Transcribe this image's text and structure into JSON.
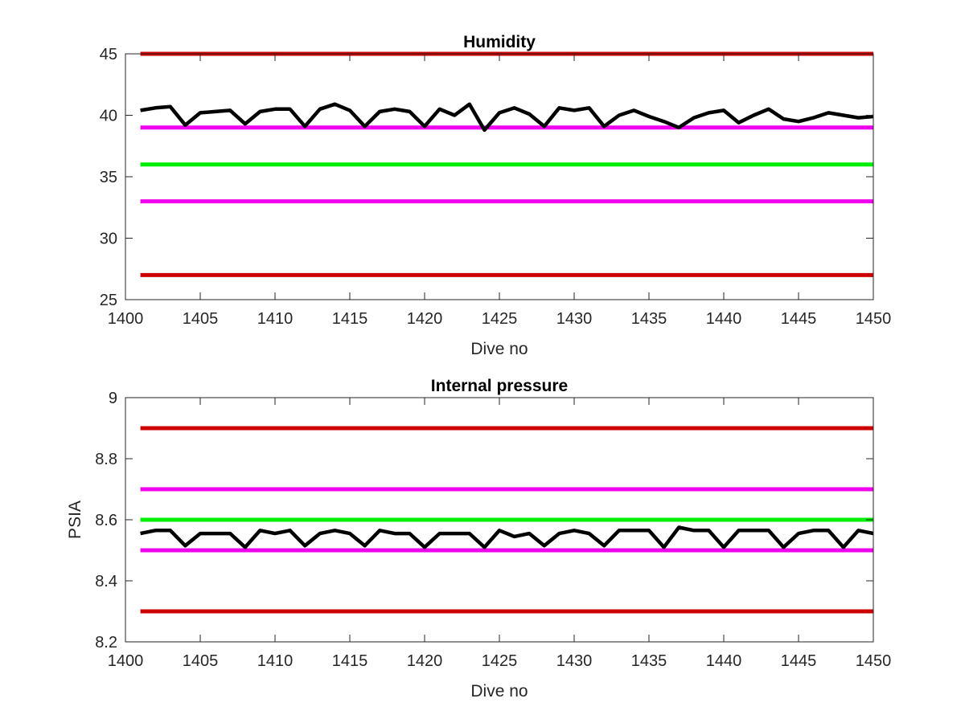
{
  "chart_data": [
    {
      "type": "line",
      "title": "Humidity",
      "xlabel": "Dive no",
      "ylabel": "",
      "xlim": [
        1400,
        1450
      ],
      "ylim": [
        25,
        45
      ],
      "xticks": [
        1400,
        1405,
        1410,
        1415,
        1420,
        1425,
        1430,
        1435,
        1440,
        1445,
        1450
      ],
      "yticks": [
        25,
        30,
        35,
        40,
        45
      ],
      "grid": false,
      "reference_lines": [
        {
          "y": 45,
          "color": "#cc0000"
        },
        {
          "y": 39,
          "color": "#ee00ee"
        },
        {
          "y": 36,
          "color": "#00ee00"
        },
        {
          "y": 33,
          "color": "#ee00ee"
        },
        {
          "y": 27,
          "color": "#cc0000"
        }
      ],
      "series": [
        {
          "color": "#000000",
          "x": [
            1401,
            1402,
            1403,
            1404,
            1405,
            1406,
            1407,
            1408,
            1409,
            1410,
            1411,
            1412,
            1413,
            1414,
            1415,
            1416,
            1417,
            1418,
            1419,
            1420,
            1421,
            1422,
            1423,
            1424,
            1425,
            1426,
            1427,
            1428,
            1429,
            1430,
            1431,
            1432,
            1433,
            1434,
            1435,
            1436,
            1437,
            1438,
            1439,
            1440,
            1441,
            1442,
            1443,
            1444,
            1445,
            1446,
            1447,
            1448,
            1449,
            1450
          ],
          "values": [
            40.4,
            40.6,
            40.7,
            39.2,
            40.2,
            40.3,
            40.4,
            39.3,
            40.3,
            40.5,
            40.5,
            39.1,
            40.5,
            40.9,
            40.4,
            39.1,
            40.3,
            40.5,
            40.3,
            39.1,
            40.5,
            40.0,
            40.9,
            38.8,
            40.2,
            40.6,
            40.1,
            39.1,
            40.6,
            40.4,
            40.6,
            39.1,
            40.0,
            40.4,
            39.9,
            39.5,
            39.0,
            39.8,
            40.2,
            40.4,
            39.4,
            40.0,
            40.5,
            39.7,
            39.5,
            39.8,
            40.2,
            40.0,
            39.8,
            39.9
          ]
        }
      ]
    },
    {
      "type": "line",
      "title": "Internal pressure",
      "xlabel": "Dive no",
      "ylabel": "PSIA",
      "xlim": [
        1400,
        1450
      ],
      "ylim": [
        8.2,
        9
      ],
      "xticks": [
        1400,
        1405,
        1410,
        1415,
        1420,
        1425,
        1430,
        1435,
        1440,
        1445,
        1450
      ],
      "yticks": [
        8.2,
        8.4,
        8.6,
        8.8,
        9
      ],
      "grid": false,
      "reference_lines": [
        {
          "y": 8.9,
          "color": "#cc0000"
        },
        {
          "y": 8.7,
          "color": "#ee00ee"
        },
        {
          "y": 8.6,
          "color": "#00ee00"
        },
        {
          "y": 8.5,
          "color": "#ee00ee"
        },
        {
          "y": 8.3,
          "color": "#cc0000"
        }
      ],
      "series": [
        {
          "color": "#000000",
          "x": [
            1401,
            1402,
            1403,
            1404,
            1405,
            1406,
            1407,
            1408,
            1409,
            1410,
            1411,
            1412,
            1413,
            1414,
            1415,
            1416,
            1417,
            1418,
            1419,
            1420,
            1421,
            1422,
            1423,
            1424,
            1425,
            1426,
            1427,
            1428,
            1429,
            1430,
            1431,
            1432,
            1433,
            1434,
            1435,
            1436,
            1437,
            1438,
            1439,
            1440,
            1441,
            1442,
            1443,
            1444,
            1445,
            1446,
            1447,
            1448,
            1449,
            1450
          ],
          "values": [
            8.555,
            8.565,
            8.565,
            8.515,
            8.555,
            8.555,
            8.555,
            8.51,
            8.565,
            8.555,
            8.565,
            8.515,
            8.555,
            8.565,
            8.555,
            8.515,
            8.565,
            8.555,
            8.555,
            8.51,
            8.555,
            8.555,
            8.555,
            8.51,
            8.565,
            8.545,
            8.555,
            8.515,
            8.555,
            8.565,
            8.555,
            8.515,
            8.565,
            8.565,
            8.565,
            8.51,
            8.575,
            8.565,
            8.565,
            8.51,
            8.565,
            8.565,
            8.565,
            8.51,
            8.555,
            8.565,
            8.565,
            8.51,
            8.565,
            8.555
          ]
        }
      ]
    }
  ]
}
